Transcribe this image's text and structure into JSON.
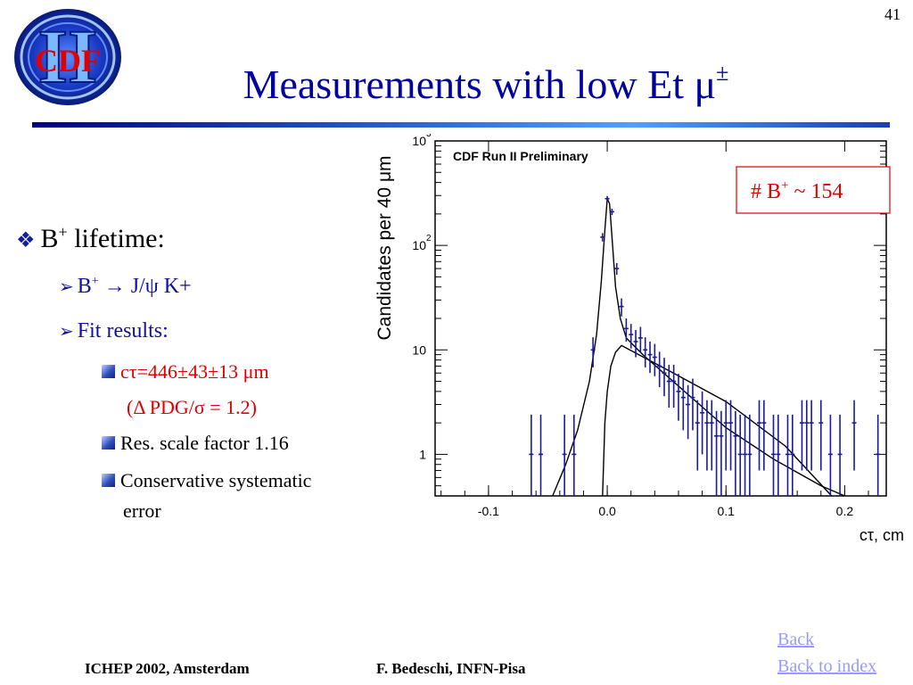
{
  "slide": {
    "number": "41"
  },
  "logo": {
    "text": "CDF",
    "roman": "II"
  },
  "title": {
    "text": "Measurements with low Et μ",
    "superscript": "±"
  },
  "bullets": {
    "level1": {
      "marker": "❖",
      "text": "B",
      "sup": "+",
      "rest": " lifetime:"
    },
    "decay": {
      "marker": "➢",
      "text": "B",
      "sup": "+",
      "rest": " → J/ψ K+"
    },
    "fit": {
      "marker": "➢",
      "text": "Fit results:"
    },
    "ctau": "cτ=446±43±13 μm",
    "pdg": "(Δ PDG/σ = 1.2)",
    "scale": "Res. scale factor 1.16",
    "syst_line1": "Conservative systematic",
    "syst_line2": "error"
  },
  "footer": {
    "conference": "ICHEP 2002, Amsterdam",
    "author": "F. Bedeschi, INFN-Pisa"
  },
  "nav": {
    "back": "Back",
    "back_index": "Back to index"
  },
  "colors": {
    "title": "#0000a0",
    "accent_red": "#e00000",
    "data_points": "#1a1a9a",
    "link": "#9999ff"
  },
  "chart_data": {
    "type": "scatter",
    "title": "CDF Run II Preliminary",
    "annotation": {
      "text": "# B",
      "sup": "+",
      "rest": " ~ 154",
      "placement": "top-right"
    },
    "xlabel": "cτ, cm",
    "ylabel": "Candidates per 40 μm",
    "xlim": [
      -0.145,
      0.235
    ],
    "ylim": [
      0.4,
      1000
    ],
    "log_y": true,
    "x_ticks": [
      {
        "value": -0.1,
        "label": "-0.1"
      },
      {
        "value": 0.0,
        "label": "0.0"
      },
      {
        "value": 0.1,
        "label": "0.1"
      },
      {
        "value": 0.2,
        "label": "0.2"
      }
    ],
    "y_ticks": [
      {
        "value": 1000,
        "label": "10",
        "sup": "3"
      },
      {
        "value": 100,
        "label": "10",
        "sup": "2"
      },
      {
        "value": 10,
        "label": "10",
        "sup": ""
      },
      {
        "value": 1,
        "label": "1",
        "sup": ""
      }
    ],
    "series": [
      {
        "kind": "points",
        "x": [
          -0.064,
          -0.056,
          -0.036,
          -0.028,
          -0.012,
          -0.004,
          0.0,
          0.004,
          0.008,
          0.012,
          0.016,
          0.02,
          0.024,
          0.028,
          0.032,
          0.036,
          0.04,
          0.044,
          0.048,
          0.052,
          0.056,
          0.06,
          0.064,
          0.068,
          0.072,
          0.076,
          0.08,
          0.084,
          0.088,
          0.092,
          0.096,
          0.1,
          0.104,
          0.108,
          0.112,
          0.116,
          0.12,
          0.128,
          0.132,
          0.14,
          0.144,
          0.152,
          0.156,
          0.164,
          0.168,
          0.172,
          0.18,
          0.188,
          0.196,
          0.208,
          0.228
        ],
        "y": [
          1,
          1,
          1,
          1,
          10,
          120,
          280,
          210,
          60,
          26,
          16,
          14,
          12,
          13,
          10,
          9,
          8.5,
          7,
          6,
          5,
          5,
          4,
          3.5,
          3,
          3.5,
          2,
          2.5,
          2,
          2,
          1.5,
          1.5,
          2,
          2,
          1.5,
          1,
          1,
          1,
          2,
          2,
          1,
          1,
          1,
          1,
          2,
          2,
          2,
          2,
          1,
          1,
          2,
          1
        ],
        "err_lo": [
          0.62,
          0.62,
          0.62,
          0.62,
          3.2,
          11,
          17,
          14.5,
          7.7,
          5.1,
          4,
          3.7,
          3.5,
          3.6,
          3.2,
          3,
          2.9,
          2.6,
          2.4,
          2.2,
          2.2,
          1.9,
          1.8,
          1.6,
          1.8,
          1.3,
          1.5,
          1.3,
          1.3,
          1.1,
          1.1,
          1.3,
          1.3,
          1.1,
          0.62,
          0.62,
          0.62,
          1.3,
          1.3,
          0.62,
          0.62,
          0.62,
          0.62,
          1.3,
          1.3,
          1.3,
          1.3,
          0.62,
          0.62,
          1.3,
          0.62
        ],
        "err_hi": [
          1.4,
          1.4,
          1.4,
          1.4,
          3.2,
          11,
          17,
          14.5,
          7.7,
          5.1,
          4,
          3.7,
          3.5,
          3.6,
          3.2,
          3,
          2.9,
          2.6,
          2.4,
          2.2,
          2.2,
          1.9,
          1.8,
          1.6,
          1.8,
          1.3,
          1.5,
          1.3,
          1.3,
          1.1,
          1.1,
          1.3,
          1.3,
          1.1,
          1.4,
          1.4,
          1.4,
          1.3,
          1.3,
          1.4,
          1.4,
          1.4,
          1.4,
          1.3,
          1.3,
          1.3,
          1.3,
          1.4,
          1.4,
          1.3,
          1.4
        ]
      },
      {
        "kind": "curve",
        "x": [
          -0.046,
          -0.035,
          -0.025,
          -0.015,
          -0.009,
          -0.005,
          -0.002,
          0.0,
          0.002,
          0.004,
          0.007,
          0.011,
          0.016,
          0.03,
          0.06,
          0.1,
          0.14,
          0.18,
          0.2
        ],
        "y": [
          0.4,
          0.8,
          1.7,
          5,
          14,
          45,
          140,
          280,
          250,
          120,
          40,
          20,
          13,
          9,
          4.5,
          1.8,
          0.9,
          0.5,
          0.4
        ]
      },
      {
        "kind": "curve",
        "x": [
          -0.004,
          -0.002,
          0.0,
          0.003,
          0.007,
          0.012,
          0.05,
          0.1,
          0.15,
          0.189
        ],
        "y": [
          0.4,
          2,
          4,
          7,
          9.5,
          11,
          6.5,
          3.2,
          1.2,
          0.4
        ]
      }
    ]
  }
}
